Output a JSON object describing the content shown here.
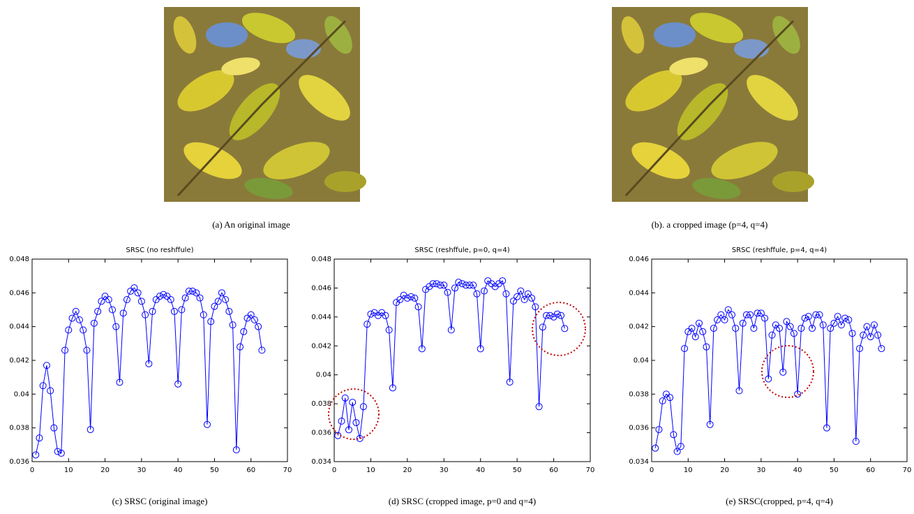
{
  "images": [
    {
      "caption": "(a) An original image"
    },
    {
      "caption": "(b). a cropped image (p=4, q=4)"
    }
  ],
  "chart_data": [
    {
      "type": "line",
      "title": "SRSC (no reshffule)",
      "caption": "(c) SRSC (original image)",
      "color": "#0000ff",
      "marker": "circle",
      "x": [
        1,
        2,
        3,
        4,
        5,
        6,
        7,
        8,
        9,
        10,
        11,
        12,
        13,
        14,
        15,
        16,
        17,
        18,
        19,
        20,
        21,
        22,
        23,
        24,
        25,
        26,
        27,
        28,
        29,
        30,
        31,
        32,
        33,
        34,
        35,
        36,
        37,
        38,
        39,
        40,
        41,
        42,
        43,
        44,
        45,
        46,
        47,
        48,
        49,
        50,
        51,
        52,
        53,
        54,
        55,
        56,
        57,
        58,
        59,
        60,
        61,
        62,
        63
      ],
      "values": [
        0.0364,
        0.0374,
        0.0405,
        0.0417,
        0.0402,
        0.038,
        0.0366,
        0.0365,
        0.0426,
        0.0438,
        0.0445,
        0.0449,
        0.0444,
        0.0438,
        0.0426,
        0.0379,
        0.0442,
        0.0449,
        0.0455,
        0.0458,
        0.0456,
        0.045,
        0.044,
        0.0407,
        0.0448,
        0.0456,
        0.0461,
        0.0463,
        0.046,
        0.0455,
        0.0447,
        0.0418,
        0.0449,
        0.0456,
        0.0458,
        0.0459,
        0.0458,
        0.0456,
        0.0449,
        0.0406,
        0.045,
        0.0457,
        0.0461,
        0.0461,
        0.046,
        0.0457,
        0.0447,
        0.0382,
        0.0443,
        0.0452,
        0.0455,
        0.046,
        0.0456,
        0.0449,
        0.0441,
        0.0367,
        0.0428,
        0.0437,
        0.0445,
        0.0447,
        0.0444,
        0.044,
        0.0426
      ],
      "xlim": [
        0,
        70
      ],
      "xticks": [
        0,
        10,
        20,
        30,
        40,
        50,
        60,
        70
      ],
      "ylim": [
        0.036,
        0.048
      ],
      "yticks": [
        0.036,
        0.038,
        0.04,
        0.042,
        0.044,
        0.046,
        0.048
      ]
    },
    {
      "type": "line",
      "title": "SRSC (reshffule, p=0, q=4)",
      "caption": "(d) SRSC (cropped image, p=0 and q=4)",
      "color": "#0000ff",
      "marker": "circle",
      "x": [
        1,
        2,
        3,
        4,
        5,
        6,
        7,
        8,
        9,
        10,
        11,
        12,
        13,
        14,
        15,
        16,
        17,
        18,
        19,
        20,
        21,
        22,
        23,
        24,
        25,
        26,
        27,
        28,
        29,
        30,
        31,
        32,
        33,
        34,
        35,
        36,
        37,
        38,
        39,
        40,
        41,
        42,
        43,
        44,
        45,
        46,
        47,
        48,
        49,
        50,
        51,
        52,
        53,
        54,
        55,
        56,
        57,
        58,
        59,
        60,
        61,
        62,
        63
      ],
      "values": [
        0.0358,
        0.0368,
        0.0384,
        0.0362,
        0.0381,
        0.0367,
        0.0356,
        0.0378,
        0.0435,
        0.0442,
        0.0443,
        0.0441,
        0.0443,
        0.0441,
        0.0431,
        0.0391,
        0.045,
        0.0452,
        0.0455,
        0.0453,
        0.0454,
        0.0453,
        0.0447,
        0.0418,
        0.0459,
        0.0461,
        0.0463,
        0.0463,
        0.0462,
        0.0462,
        0.0457,
        0.0431,
        0.046,
        0.0464,
        0.0463,
        0.0462,
        0.0462,
        0.0462,
        0.0456,
        0.0418,
        0.0458,
        0.0465,
        0.0463,
        0.0461,
        0.0463,
        0.0465,
        0.0456,
        0.0395,
        0.0451,
        0.0454,
        0.0458,
        0.0452,
        0.0456,
        0.0453,
        0.0447,
        0.0378,
        0.0433,
        0.0441,
        0.0441,
        0.044,
        0.0442,
        0.0441,
        0.0432
      ],
      "xlim": [
        0,
        70
      ],
      "xticks": [
        0,
        10,
        20,
        30,
        40,
        50,
        60,
        70
      ],
      "ylim": [
        0.034,
        0.048
      ],
      "yticks": [
        0.034,
        0.036,
        0.038,
        0.04,
        0.042,
        0.044,
        0.046,
        0.048
      ]
    },
    {
      "type": "line",
      "title": "SRSC (reshffule, p=4, q=4)",
      "caption": "(e) SRSC(cropped, p=4, q=4)",
      "color": "#0000ff",
      "marker": "circle",
      "x": [
        1,
        2,
        3,
        4,
        5,
        6,
        7,
        8,
        9,
        10,
        11,
        12,
        13,
        14,
        15,
        16,
        17,
        18,
        19,
        20,
        21,
        22,
        23,
        24,
        25,
        26,
        27,
        28,
        29,
        30,
        31,
        32,
        33,
        34,
        35,
        36,
        37,
        38,
        39,
        40,
        41,
        42,
        43,
        44,
        45,
        46,
        47,
        48,
        49,
        50,
        51,
        52,
        53,
        54,
        55,
        56,
        57,
        58,
        59,
        60,
        61,
        62,
        63
      ],
      "values": [
        0.0348,
        0.0359,
        0.0376,
        0.038,
        0.0378,
        0.0356,
        0.0346,
        0.0349,
        0.0407,
        0.0417,
        0.0419,
        0.0414,
        0.0422,
        0.0417,
        0.0408,
        0.0362,
        0.0419,
        0.0424,
        0.0427,
        0.0424,
        0.043,
        0.0427,
        0.0419,
        0.0382,
        0.0422,
        0.0427,
        0.0427,
        0.0419,
        0.0428,
        0.0428,
        0.0425,
        0.0389,
        0.0415,
        0.0421,
        0.0419,
        0.0393,
        0.0423,
        0.042,
        0.0416,
        0.038,
        0.0419,
        0.0425,
        0.0426,
        0.0419,
        0.0427,
        0.0427,
        0.0421,
        0.036,
        0.0419,
        0.0422,
        0.0426,
        0.0421,
        0.0425,
        0.0424,
        0.0416,
        0.0352,
        0.0407,
        0.0415,
        0.042,
        0.0414,
        0.0421,
        0.0415,
        0.0407
      ],
      "xlim": [
        0,
        70
      ],
      "xticks": [
        0,
        10,
        20,
        30,
        40,
        50,
        60,
        70
      ],
      "ylim": [
        0.034,
        0.046
      ],
      "yticks": [
        0.034,
        0.036,
        0.038,
        0.04,
        0.042,
        0.044,
        0.046
      ]
    }
  ]
}
